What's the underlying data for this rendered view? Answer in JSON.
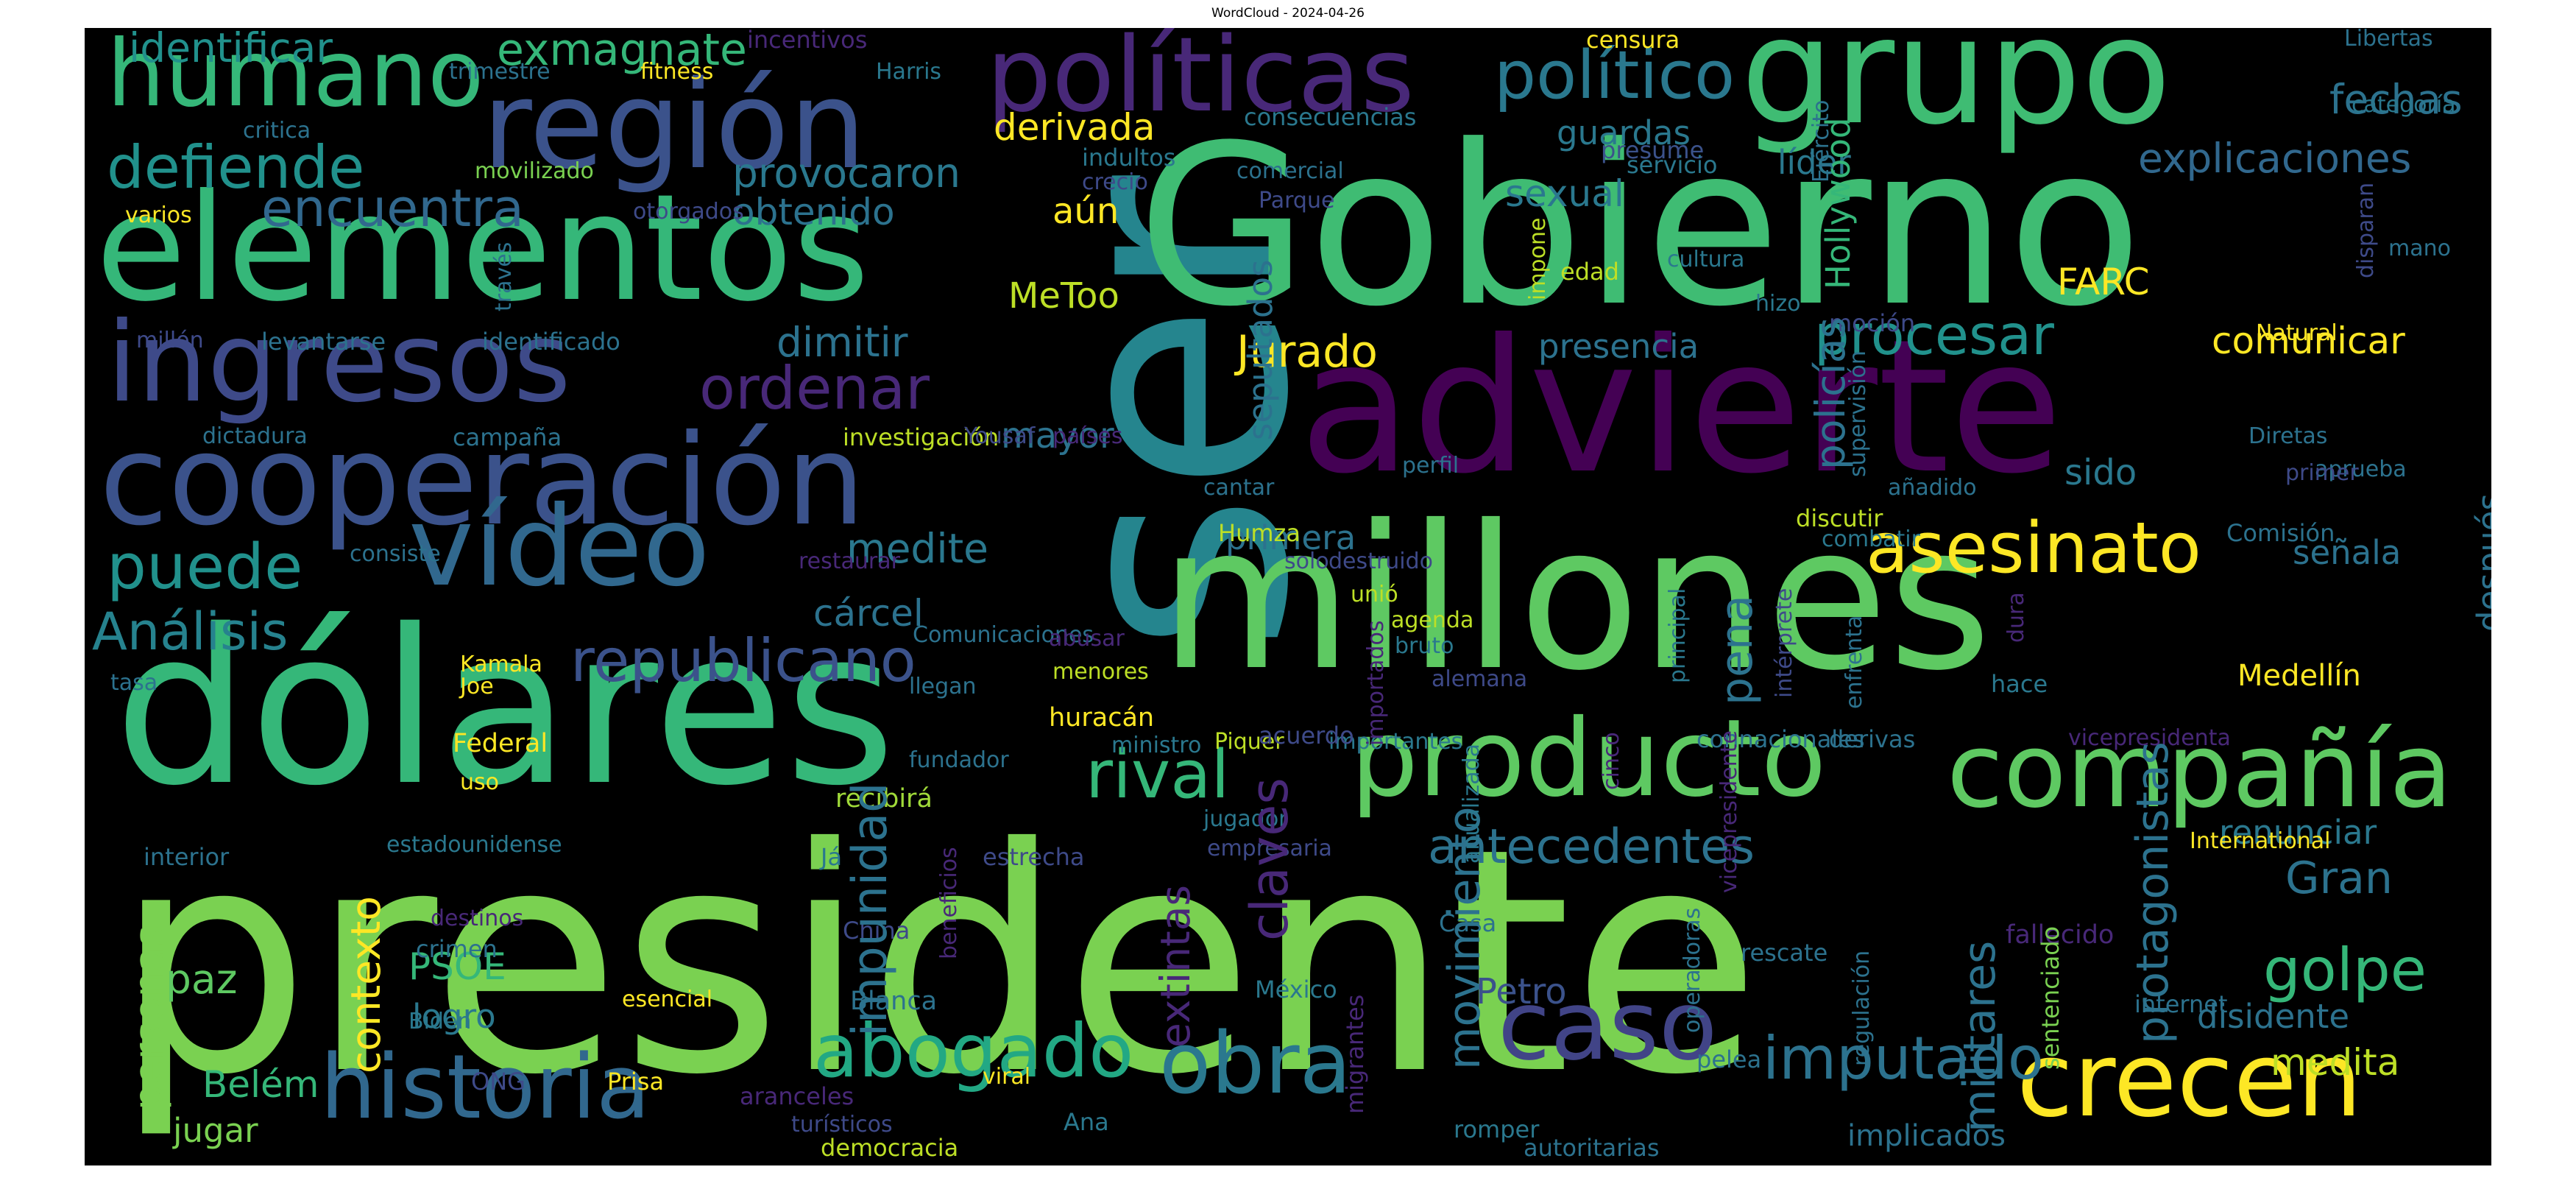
{
  "title": "WordCloud - 2024-04-26",
  "words": [
    {
      "text": "presidente",
      "color": "#7ad151"
    },
    {
      "text": "ser",
      "color": "#25858e",
      "vertical": true
    },
    {
      "text": "Gobierno",
      "color": "#3fbc73"
    },
    {
      "text": "millones",
      "color": "#5ec962"
    },
    {
      "text": "advierte",
      "color": "#440154"
    },
    {
      "text": "dólares",
      "color": "#35b779"
    },
    {
      "text": "grupo",
      "color": "#3fbc73"
    },
    {
      "text": "elementos",
      "color": "#35b779"
    },
    {
      "text": "cooperación",
      "color": "#3b528b"
    },
    {
      "text": "región",
      "color": "#3b528b"
    },
    {
      "text": "políticas",
      "color": "#482878"
    },
    {
      "text": "ingresos",
      "color": "#3e4a89"
    },
    {
      "text": "producto",
      "color": "#5ec962"
    },
    {
      "text": "compañía",
      "color": "#5ec962"
    },
    {
      "text": "vídeo",
      "color": "#31688e"
    },
    {
      "text": "historia",
      "color": "#31688e"
    },
    {
      "text": "crecen",
      "color": "#fde725"
    },
    {
      "text": "caso",
      "color": "#414487"
    },
    {
      "text": "humano",
      "color": "#35b779"
    },
    {
      "text": "obra",
      "color": "#2a788e"
    },
    {
      "text": "abogado",
      "color": "#22a884"
    },
    {
      "text": "asesinato",
      "color": "#fde725"
    },
    {
      "text": "político",
      "color": "#2a788e"
    },
    {
      "text": "republicano",
      "color": "#3b528b"
    },
    {
      "text": "defiende",
      "color": "#21918c"
    },
    {
      "text": "rival",
      "color": "#35b779"
    },
    {
      "text": "imputado",
      "color": "#2c728e"
    },
    {
      "text": "puede",
      "color": "#21918c"
    },
    {
      "text": "Análisis",
      "color": "#26828e"
    },
    {
      "text": "ordenar",
      "color": "#482878"
    },
    {
      "text": "procesar",
      "color": "#21918c"
    },
    {
      "text": "antecedentes",
      "color": "#2c728e"
    },
    {
      "text": "encuentra",
      "color": "#31688e"
    },
    {
      "text": "exmagnate",
      "color": "#35b779"
    },
    {
      "text": "identificar",
      "color": "#21918c"
    },
    {
      "text": "Jurado",
      "color": "#fde725"
    },
    {
      "text": "golpe",
      "color": "#35b779"
    },
    {
      "text": "provocaron",
      "color": "#2a788e"
    },
    {
      "text": "derivada",
      "color": "#fde725"
    },
    {
      "text": "obtenido",
      "color": "#2c728e"
    },
    {
      "text": "dimitir",
      "color": "#2c728e"
    },
    {
      "text": "explicaciones",
      "color": "#31688e"
    },
    {
      "text": "fechas",
      "color": "#2c728e"
    },
    {
      "text": "guardas",
      "color": "#2a788e"
    },
    {
      "text": "sexual",
      "color": "#2a788e"
    },
    {
      "text": "líder",
      "color": "#2a788e"
    },
    {
      "text": "MeToo",
      "color": "#bddf26"
    },
    {
      "text": "aún",
      "color": "#fde725"
    },
    {
      "text": "FARC",
      "color": "#fde725"
    },
    {
      "text": "comunicar",
      "color": "#fde725"
    },
    {
      "text": "presencia",
      "color": "#2c728e"
    },
    {
      "text": "mayor",
      "color": "#2c728e"
    },
    {
      "text": "medite",
      "color": "#2a788e"
    },
    {
      "text": "cárcel",
      "color": "#2c728e"
    },
    {
      "text": "primera",
      "color": "#2c728e"
    },
    {
      "text": "sido",
      "color": "#2a788e"
    },
    {
      "text": "señala",
      "color": "#2c728e"
    },
    {
      "text": "renunciar",
      "color": "#2a788e"
    },
    {
      "text": "Gran",
      "color": "#2c728e"
    },
    {
      "text": "disidente",
      "color": "#2c728e"
    },
    {
      "text": "medita",
      "color": "#bddf26"
    },
    {
      "text": "Petro",
      "color": "#3b528b"
    },
    {
      "text": "PSOE",
      "color": "#35b779"
    },
    {
      "text": "logro",
      "color": "#2a788e"
    },
    {
      "text": "paz",
      "color": "#5ec962"
    },
    {
      "text": "Belém",
      "color": "#35b779"
    },
    {
      "text": "jugar",
      "color": "#7ad151"
    },
    {
      "text": "implicados",
      "color": "#2c728e"
    },
    {
      "text": "Medellín",
      "color": "#fde725"
    },
    {
      "text": "huracán",
      "color": "#fde725"
    },
    {
      "text": "recibirá",
      "color": "#a0da39"
    },
    {
      "text": "estadounidense",
      "color": "#2a788e"
    },
    {
      "text": "Federal",
      "color": "#fde725"
    },
    {
      "text": "Kamala",
      "color": "#fde725"
    },
    {
      "text": "Joe",
      "color": "#fde725"
    },
    {
      "text": "uso",
      "color": "#fde725"
    },
    {
      "text": "fitness",
      "color": "#fde725"
    },
    {
      "text": "Harris",
      "color": "#2a788e"
    },
    {
      "text": "trimestre",
      "color": "#2c728e"
    },
    {
      "text": "incentivos",
      "color": "#482878"
    },
    {
      "text": "censura",
      "color": "#fde725"
    },
    {
      "text": "Libertas",
      "color": "#2c728e"
    },
    {
      "text": "categoría",
      "color": "#2a788e"
    },
    {
      "text": "consecuencias",
      "color": "#2a788e"
    },
    {
      "text": "indultos",
      "color": "#2a788e"
    },
    {
      "text": "crecio",
      "color": "#3e4a89"
    },
    {
      "text": "comercial",
      "color": "#2c728e"
    },
    {
      "text": "Parque",
      "color": "#3e4a89"
    },
    {
      "text": "presume",
      "color": "#3b528b"
    },
    {
      "text": "servicio",
      "color": "#2a788e"
    },
    {
      "text": "movilizado",
      "color": "#7ad151"
    },
    {
      "text": "varios",
      "color": "#fde725"
    },
    {
      "text": "critica",
      "color": "#2c728e"
    },
    {
      "text": "otorgados",
      "color": "#3e4a89"
    },
    {
      "text": "millón",
      "color": "#3e4a89"
    },
    {
      "text": "levantarse",
      "color": "#2c728e"
    },
    {
      "text": "identificado",
      "color": "#2c728e"
    },
    {
      "text": "dictadura",
      "color": "#2c728e"
    },
    {
      "text": "campaña",
      "color": "#2c728e"
    },
    {
      "text": "investigación",
      "color": "#bddf26"
    },
    {
      "text": "Yousaf",
      "color": "#3e4a89"
    },
    {
      "text": "países",
      "color": "#482878"
    },
    {
      "text": "cantar",
      "color": "#2c728e"
    },
    {
      "text": "perfil",
      "color": "#2c728e"
    },
    {
      "text": "edad",
      "color": "#bddf26"
    },
    {
      "text": "cultura",
      "color": "#2a788e"
    },
    {
      "text": "hizo",
      "color": "#2a788e"
    },
    {
      "text": "moción",
      "color": "#3e4a89"
    },
    {
      "text": "Natural",
      "color": "#fde725"
    },
    {
      "text": "mano",
      "color": "#2c728e"
    },
    {
      "text": "Diretas",
      "color": "#2c728e"
    },
    {
      "text": "aprueba",
      "color": "#2c728e"
    },
    {
      "text": "primer",
      "color": "#3e4a89"
    },
    {
      "text": "añadido",
      "color": "#2c728e"
    },
    {
      "text": "Comisión",
      "color": "#2c728e"
    },
    {
      "text": "consiste",
      "color": "#2c728e"
    },
    {
      "text": "restaurar",
      "color": "#482878"
    },
    {
      "text": "Comunicaciones",
      "color": "#2c728e"
    },
    {
      "text": "abusar",
      "color": "#482878"
    },
    {
      "text": "menores",
      "color": "#bddf26"
    },
    {
      "text": "llegan",
      "color": "#2c728e"
    },
    {
      "text": "tasa",
      "color": "#2c728e"
    },
    {
      "text": "Humza",
      "color": "#bddf26"
    },
    {
      "text": "destruido",
      "color": "#3e4a89"
    },
    {
      "text": "solo",
      "color": "#3e4a89"
    },
    {
      "text": "unió",
      "color": "#bddf26"
    },
    {
      "text": "agenda",
      "color": "#bddf26"
    },
    {
      "text": "bruto",
      "color": "#2a788e"
    },
    {
      "text": "alemana",
      "color": "#3e4a89"
    },
    {
      "text": "discutir",
      "color": "#bddf26"
    },
    {
      "text": "combatir",
      "color": "#2a788e"
    },
    {
      "text": "hace",
      "color": "#2a788e"
    },
    {
      "text": "importantes",
      "color": "#2a788e"
    },
    {
      "text": "Piquer",
      "color": "#bddf26"
    },
    {
      "text": "acuerdo",
      "color": "#3e4a89"
    },
    {
      "text": "connacionales",
      "color": "#2c728e"
    },
    {
      "text": "derivas",
      "color": "#2c728e"
    },
    {
      "text": "vicepresidenta",
      "color": "#482878"
    },
    {
      "text": "ministro",
      "color": "#2a788e"
    },
    {
      "text": "fundador",
      "color": "#2c728e"
    },
    {
      "text": "jugador",
      "color": "#2a788e"
    },
    {
      "text": "empresaria",
      "color": "#3e4a89"
    },
    {
      "text": "estrecha",
      "color": "#3e4a89"
    },
    {
      "text": "Já",
      "color": "#2a788e"
    },
    {
      "text": "International",
      "color": "#fde725"
    },
    {
      "text": "fallecido",
      "color": "#482878"
    },
    {
      "text": "interior",
      "color": "#2c728e"
    },
    {
      "text": "destinos",
      "color": "#482878"
    },
    {
      "text": "crimen",
      "color": "#2c728e"
    },
    {
      "text": "China",
      "color": "#3e4a89"
    },
    {
      "text": "Casa",
      "color": "#2c728e"
    },
    {
      "text": "rescate",
      "color": "#2c728e"
    },
    {
      "text": "esencial",
      "color": "#fde725"
    },
    {
      "text": "Blanca",
      "color": "#2c728e"
    },
    {
      "text": "Biden",
      "color": "#2a788e"
    },
    {
      "text": "México",
      "color": "#2a788e"
    },
    {
      "text": "internet",
      "color": "#2c728e"
    },
    {
      "text": "ONG",
      "color": "#3e4a89"
    },
    {
      "text": "Prisa",
      "color": "#fde725"
    },
    {
      "text": "aranceles",
      "color": "#482878"
    },
    {
      "text": "viral",
      "color": "#fde725"
    },
    {
      "text": "pelea",
      "color": "#2c728e"
    },
    {
      "text": "turísticos",
      "color": "#3e4a89"
    },
    {
      "text": "democracia",
      "color": "#bddf26"
    },
    {
      "text": "Ana",
      "color": "#2a788e"
    },
    {
      "text": "romper",
      "color": "#2a788e"
    },
    {
      "text": "autoritarias",
      "color": "#2c728e"
    },
    {
      "text": "sentenciado",
      "color": "#7ad151",
      "vertical": true
    },
    {
      "text": "migrantes",
      "color": "#482878",
      "vertical": true
    },
    {
      "text": "personas",
      "color": "#7ad151",
      "vertical": true
    },
    {
      "text": "contexto",
      "color": "#fde725",
      "vertical": true
    },
    {
      "text": "impunidad",
      "color": "#2c728e",
      "vertical": true
    },
    {
      "text": "claves",
      "color": "#482878",
      "vertical": true
    },
    {
      "text": "extintas",
      "color": "#482878",
      "vertical": true
    },
    {
      "text": "sepultados",
      "color": "#2c728e",
      "vertical": true
    },
    {
      "text": "movimiento",
      "color": "#2c728e",
      "vertical": true
    },
    {
      "text": "pena",
      "color": "#2c728e",
      "vertical": true
    },
    {
      "text": "policías",
      "color": "#2c728e",
      "vertical": true
    },
    {
      "text": "Hollywood",
      "color": "#35b779",
      "vertical": true
    },
    {
      "text": "militares",
      "color": "#2c728e",
      "vertical": true
    },
    {
      "text": "protagonistas",
      "color": "#2c728e",
      "vertical": true
    },
    {
      "text": "después",
      "color": "#2c728e",
      "vertical": true
    },
    {
      "text": "impone",
      "color": "#bddf26",
      "vertical": true
    },
    {
      "text": "través",
      "color": "#2c728e",
      "vertical": true
    },
    {
      "text": "Ejército",
      "color": "#2c728e",
      "vertical": true
    },
    {
      "text": "disparan",
      "color": "#3e4a89",
      "vertical": true
    },
    {
      "text": "supervisión",
      "color": "#2c728e",
      "vertical": true
    },
    {
      "text": "principal",
      "color": "#2a788e",
      "vertical": true
    },
    {
      "text": "intérprete",
      "color": "#3e4a89",
      "vertical": true
    },
    {
      "text": "enfrenta",
      "color": "#2c728e",
      "vertical": true
    },
    {
      "text": "dura",
      "color": "#482878",
      "vertical": true
    },
    {
      "text": "importados",
      "color": "#482878",
      "vertical": true
    },
    {
      "text": "anualizada",
      "color": "#2a788e",
      "vertical": true
    },
    {
      "text": "cinco",
      "color": "#482878",
      "vertical": true
    },
    {
      "text": "vicepresidente",
      "color": "#482878",
      "vertical": true
    },
    {
      "text": "beneficios",
      "color": "#482878",
      "vertical": true
    },
    {
      "text": "operadoras",
      "color": "#2c728e",
      "vertical": true
    },
    {
      "text": "regulación",
      "color": "#2c728e",
      "vertical": true
    },
    {
      "text": "cantante",
      "color": "#2c728e",
      "vertical": true
    },
    {
      "text": "temporales",
      "color": "#2a788e",
      "vertical": true
    }
  ]
}
